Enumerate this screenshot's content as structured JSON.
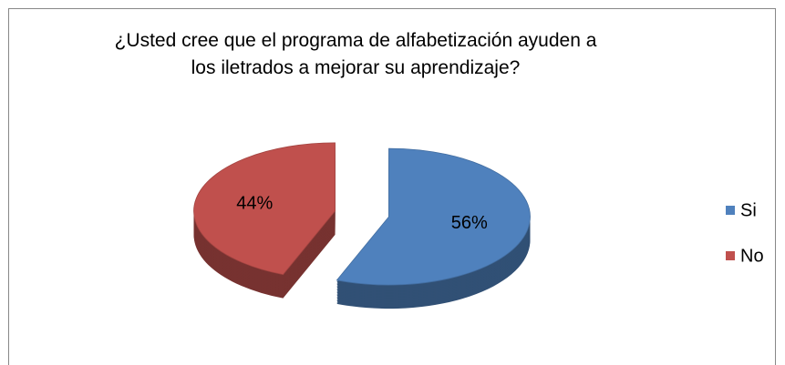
{
  "chart_data": {
    "type": "pie",
    "title": "¿Usted cree que el programa de alfabetización ayuden a los iletrados a mejorar su aprendizaje?",
    "categories": [
      "Si",
      "No"
    ],
    "values": [
      56,
      44
    ],
    "value_labels": [
      "56%",
      "44%"
    ],
    "colors": [
      "#4f81bd",
      "#c0504d"
    ],
    "legend": "right"
  }
}
